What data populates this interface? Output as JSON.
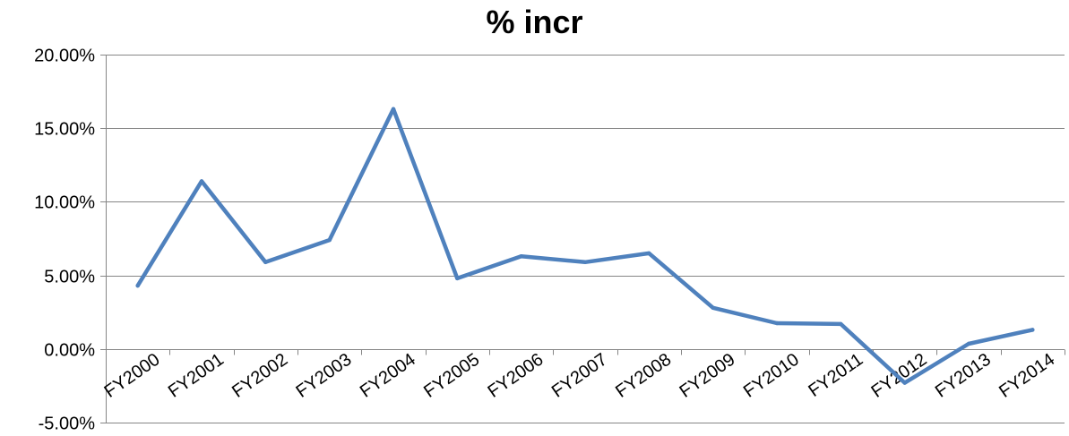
{
  "chart_data": {
    "type": "line",
    "title": "% incr",
    "xlabel": "",
    "ylabel": "",
    "categories": [
      "FY2000",
      "FY2001",
      "FY2002",
      "FY2003",
      "FY2004",
      "FY2005",
      "FY2006",
      "FY2007",
      "FY2008",
      "FY2009",
      "FY2010",
      "FY2011",
      "FY2012",
      "FY2013",
      "FY2014"
    ],
    "series": [
      {
        "values": [
          4.3,
          11.4,
          5.9,
          7.4,
          16.3,
          4.8,
          6.3,
          5.9,
          6.5,
          2.8,
          1.75,
          1.7,
          -2.3,
          0.35,
          1.3
        ],
        "color": "#4f81bd"
      }
    ],
    "ylim": [
      -5,
      20
    ],
    "y_ticks": [
      -5,
      0,
      5,
      10,
      15,
      20
    ],
    "y_tick_labels": [
      "-5.00%",
      "0.00%",
      "5.00%",
      "10.00%",
      "15.00%",
      "20.00%"
    ],
    "grid": true,
    "legend": "none",
    "gridline_color": "#868686",
    "axis_color": "#868686"
  }
}
